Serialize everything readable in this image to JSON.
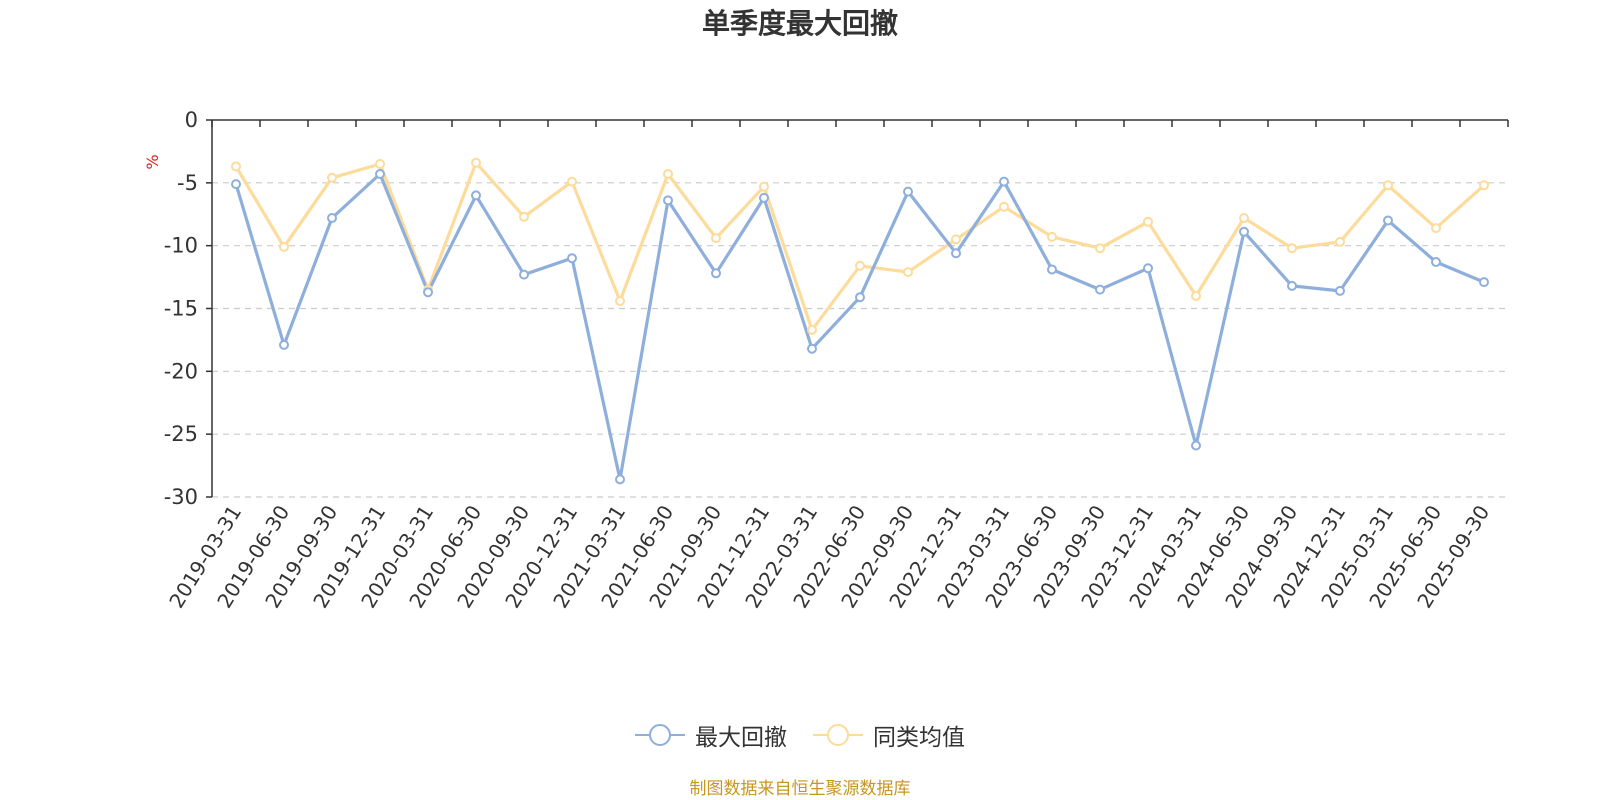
{
  "chart_data": {
    "type": "line",
    "title": "单季度最大回撤",
    "ylabel": "%",
    "xlabel": "",
    "ylim": [
      -30,
      0
    ],
    "yticks": [
      0,
      -5,
      -10,
      -15,
      -20,
      -25,
      -30
    ],
    "grid": true,
    "legend_position": "bottom",
    "categories": [
      "2019-03-31",
      "2019-06-30",
      "2019-09-30",
      "2019-12-31",
      "2020-03-31",
      "2020-06-30",
      "2020-09-30",
      "2020-12-31",
      "2021-03-31",
      "2021-06-30",
      "2021-09-30",
      "2021-12-31",
      "2022-03-31",
      "2022-06-30",
      "2022-09-30",
      "2022-12-31",
      "2023-03-31",
      "2023-06-30",
      "2023-09-30",
      "2023-12-31",
      "2024-03-31",
      "2024-06-30",
      "2024-09-30",
      "2024-12-31",
      "2025-03-31",
      "2025-06-30",
      "2025-09-30"
    ],
    "series": [
      {
        "name": "最大回撤",
        "color": "#8eaedb",
        "values": [
          -5.1,
          -17.9,
          -7.8,
          -4.3,
          -13.7,
          -6.0,
          -12.3,
          -11.0,
          -28.6,
          -6.4,
          -12.2,
          -6.2,
          -18.2,
          -14.1,
          -5.7,
          -10.6,
          -4.9,
          -11.9,
          -13.5,
          -11.8,
          -25.9,
          -8.9,
          -13.2,
          -13.6,
          -8.0,
          -11.3,
          -12.9
        ]
      },
      {
        "name": "同类均值",
        "color": "#fddb9a",
        "values": [
          -3.7,
          -10.1,
          -4.6,
          -3.5,
          -13.5,
          -3.4,
          -7.7,
          -4.9,
          -14.4,
          -4.3,
          -9.4,
          -5.3,
          -16.7,
          -11.6,
          -12.1,
          -9.5,
          -6.9,
          -9.3,
          -10.2,
          -8.1,
          -14.0,
          -7.8,
          -10.2,
          -9.7,
          -5.2,
          -8.6,
          -5.2
        ]
      }
    ]
  },
  "legend": {
    "items": [
      {
        "label": "最大回撤",
        "color": "#8eaedb"
      },
      {
        "label": "同类均值",
        "color": "#fddb9a"
      }
    ]
  },
  "footer": {
    "source": "制图数据来自恒生聚源数据库"
  }
}
